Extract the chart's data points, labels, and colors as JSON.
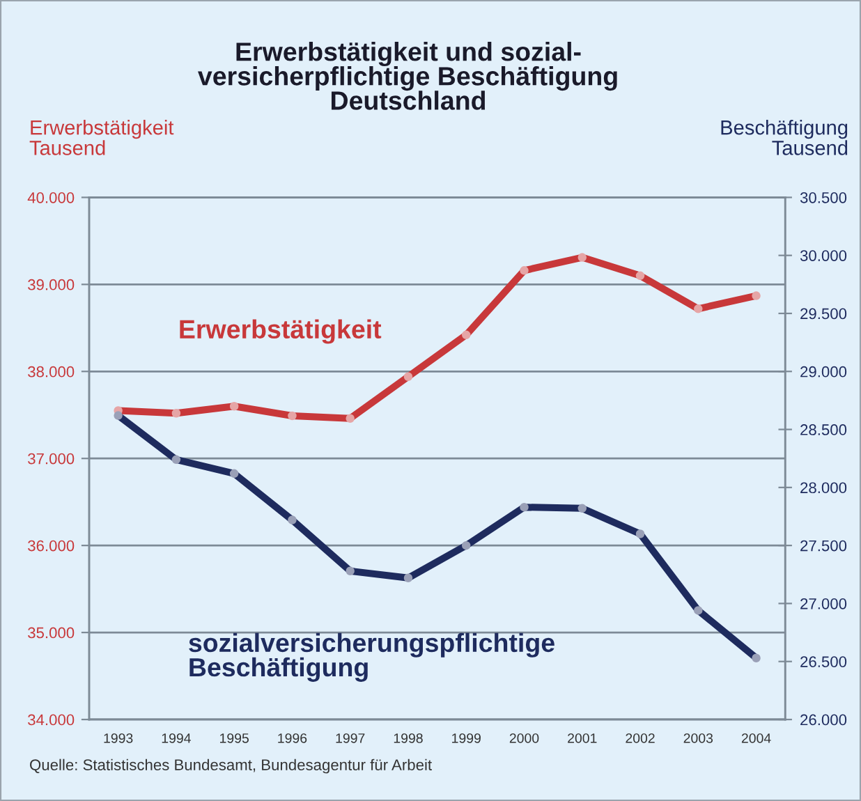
{
  "chart_data": {
    "type": "line",
    "title": "Erwerbstätigkeit und sozial-\nversicherpflichtige Beschäftigung\nDeutschland",
    "ylabel": "Erwerbstätigkeit\nTausend",
    "y2label": "Beschäftigung\nTausend",
    "categories": [
      "1993",
      "1994",
      "1995",
      "1996",
      "1997",
      "1998",
      "1999",
      "2000",
      "2001",
      "2002",
      "2003",
      "2004"
    ],
    "series": [
      {
        "name": "Erwerbstätigkeit",
        "color": "#c8383a",
        "values": [
          37550,
          37520,
          37600,
          37490,
          37460,
          37940,
          38420,
          39160,
          39310,
          39100,
          38720,
          38870
        ]
      },
      {
        "name": "sozialversicherungspflichtige\nBeschäftigung",
        "color": "#1e2b5e",
        "axis": "y2",
        "values": [
          28620,
          28240,
          28120,
          27720,
          27280,
          27220,
          27500,
          27830,
          27820,
          27600,
          26940,
          26530
        ]
      }
    ],
    "ylim": [
      34000,
      40000
    ],
    "yticks": [
      {
        "value": 34000,
        "label": "34.000"
      },
      {
        "value": 35000,
        "label": "35.000"
      },
      {
        "value": 36000,
        "label": "36.000"
      },
      {
        "value": 37000,
        "label": "37.000"
      },
      {
        "value": 38000,
        "label": "38.000"
      },
      {
        "value": 39000,
        "label": "39.000"
      },
      {
        "value": 40000,
        "label": "40.000"
      }
    ],
    "y2lim": [
      26000,
      30500
    ],
    "y2ticks": [
      {
        "value": 26000,
        "label": "26.000"
      },
      {
        "value": 26500,
        "label": "26.500"
      },
      {
        "value": 27000,
        "label": "27.000"
      },
      {
        "value": 27500,
        "label": "27.500"
      },
      {
        "value": 28000,
        "label": "28.000"
      },
      {
        "value": 28500,
        "label": "28.500"
      },
      {
        "value": 29000,
        "label": "29.000"
      },
      {
        "value": 29500,
        "label": "29.500"
      },
      {
        "value": 30000,
        "label": "30.000"
      },
      {
        "value": 30500,
        "label": "30.500"
      }
    ],
    "grid": true,
    "legend": false,
    "marker": "circle",
    "line_style": "solid",
    "annotations": [
      "Quelle: Statistisches Bundesamt, Bundesagentur für Arbeit"
    ]
  }
}
